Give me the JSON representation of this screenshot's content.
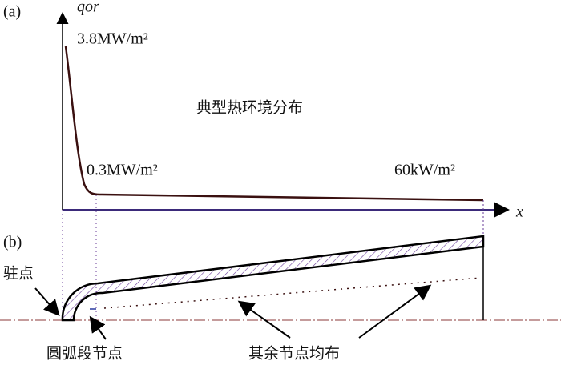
{
  "panel_a": {
    "label": "(a)",
    "y_axis_label": "qor",
    "peak_label": "3.8MW/m²",
    "title": "典型热环境分布",
    "mid_label": "0.3MW/m²",
    "end_label": "60kW/m²",
    "x_axis_label": "x"
  },
  "panel_b": {
    "label": "(b)",
    "stagnation_label": "驻点",
    "arc_nodes_label": "圆弧段节点",
    "other_nodes_label": "其余节点均布"
  }
}
